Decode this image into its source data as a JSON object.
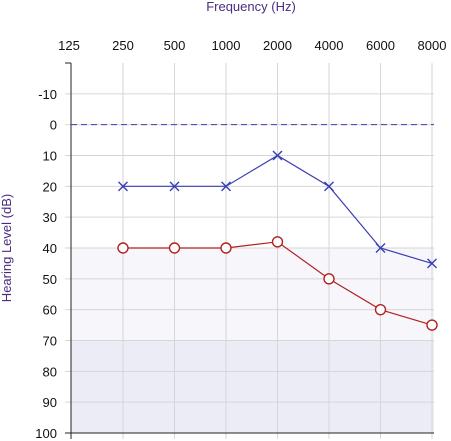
{
  "chart_data": {
    "type": "line",
    "title": "Frequency (Hz)",
    "xlabel": "Frequency (Hz)",
    "ylabel": "Hearing Level (dB)",
    "x_ticks": [
      "125",
      "250",
      "500",
      "1000",
      "2000",
      "4000",
      "6000",
      "8000"
    ],
    "y_ticks": [
      "-10",
      "0",
      "10",
      "20",
      "30",
      "40",
      "50",
      "60",
      "70",
      "80",
      "90",
      "100"
    ],
    "ylim": [
      -20,
      100
    ],
    "y_inverted": true,
    "grid": true,
    "reference_line": {
      "y": 0,
      "style": "dashed",
      "color": "#3b3fb5"
    },
    "bands": [
      {
        "from": 40,
        "to": 70,
        "color": "#f7f6fb"
      },
      {
        "from": 70,
        "to": 100,
        "color": "#ececf6"
      }
    ],
    "series": [
      {
        "marker": "x",
        "color": "#3b3fb5",
        "x": [
          "250",
          "500",
          "1000",
          "2000",
          "4000",
          "6000",
          "8000"
        ],
        "values": [
          20,
          20,
          20,
          10,
          20,
          40,
          45
        ]
      },
      {
        "marker": "o",
        "color": "#b22222",
        "x": [
          "250",
          "500",
          "1000",
          "2000",
          "4000",
          "6000",
          "8000"
        ],
        "values": [
          40,
          40,
          40,
          38,
          50,
          60,
          65
        ]
      }
    ]
  }
}
